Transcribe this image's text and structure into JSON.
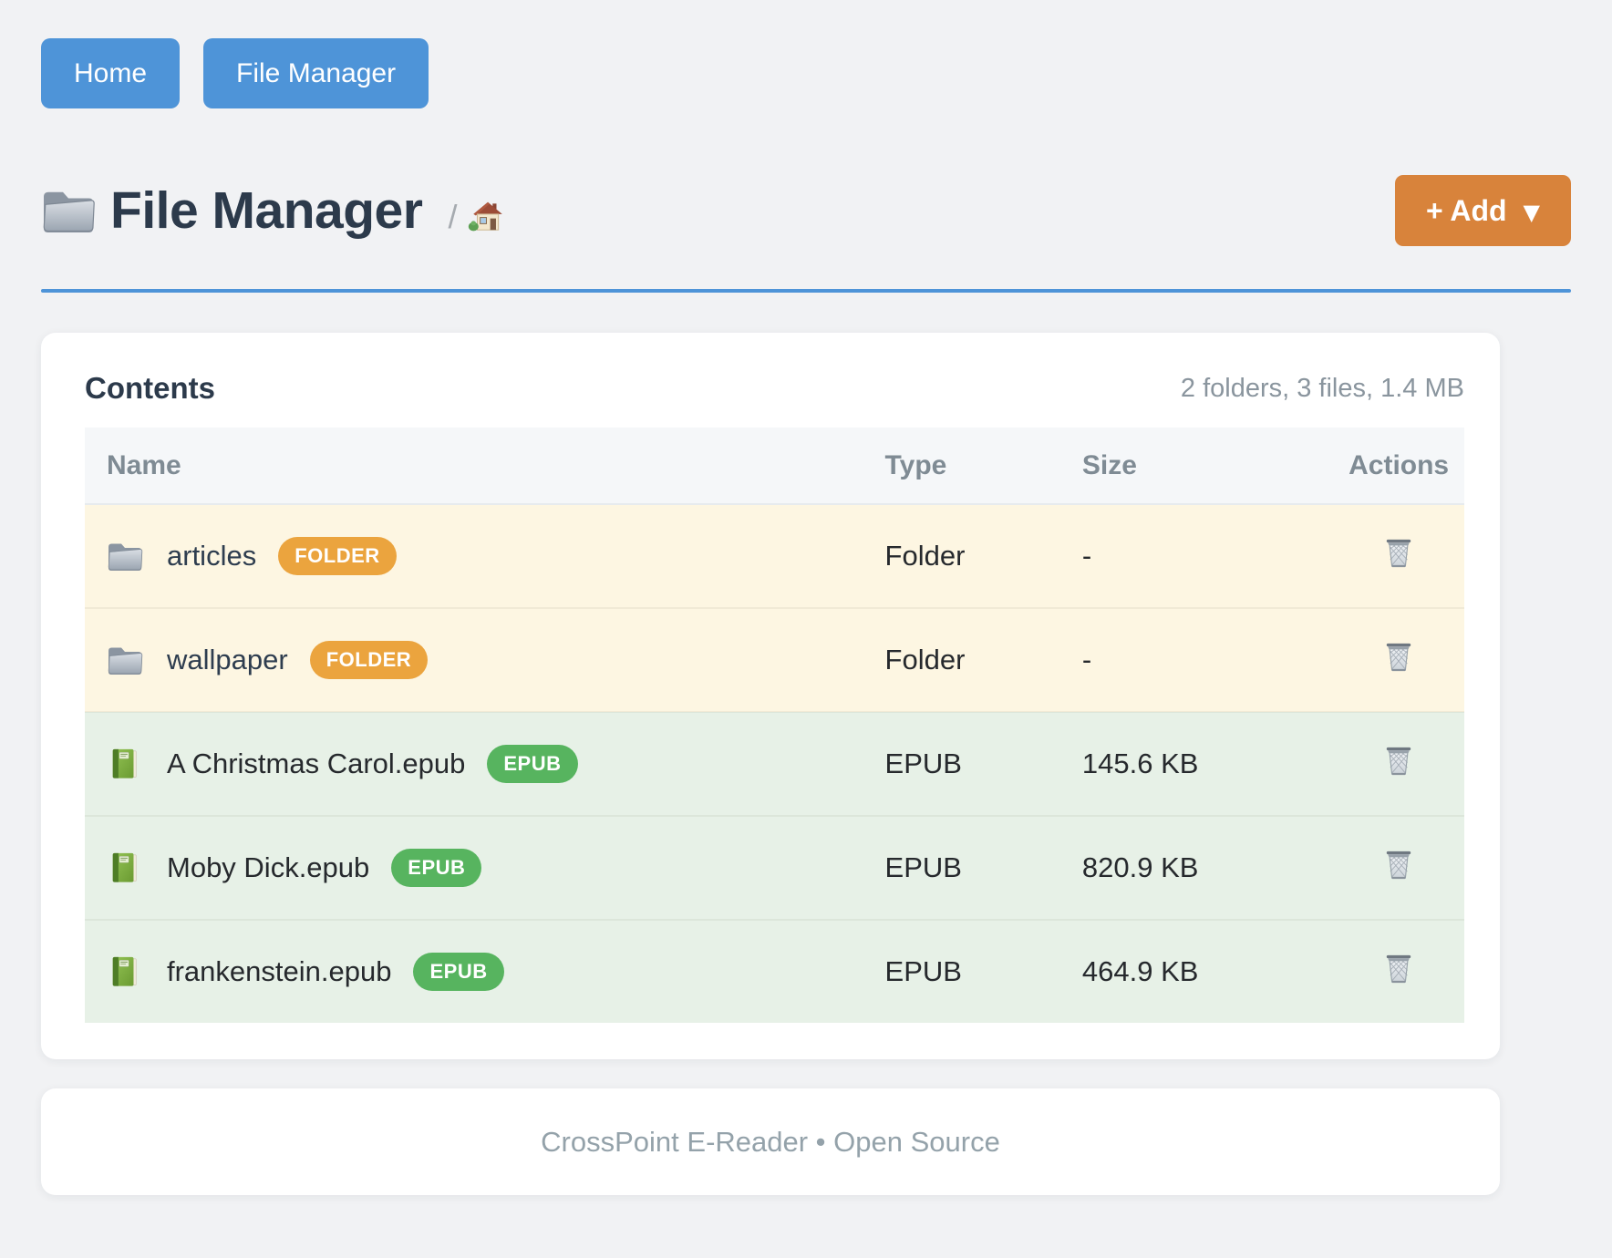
{
  "nav": {
    "home_label": "Home",
    "file_manager_label": "File Manager"
  },
  "header": {
    "title": "File Manager",
    "breadcrumb_separator": "/",
    "add_button_label": "+ Add",
    "add_button_caret": "▼"
  },
  "panel": {
    "title": "Contents",
    "summary": "2 folders, 3 files, 1.4 MB"
  },
  "table": {
    "columns": [
      "Name",
      "Type",
      "Size",
      "Actions"
    ],
    "rows": [
      {
        "name": "articles",
        "badge": "FOLDER",
        "kind": "folder",
        "type": "Folder",
        "size": "-"
      },
      {
        "name": "wallpaper",
        "badge": "FOLDER",
        "kind": "folder",
        "type": "Folder",
        "size": "-"
      },
      {
        "name": "A Christmas Carol.epub",
        "badge": "EPUB",
        "kind": "epub",
        "type": "EPUB",
        "size": "145.6 KB"
      },
      {
        "name": "Moby Dick.epub",
        "badge": "EPUB",
        "kind": "epub",
        "type": "EPUB",
        "size": "820.9 KB"
      },
      {
        "name": "frankenstein.epub",
        "badge": "EPUB",
        "kind": "epub",
        "type": "EPUB",
        "size": "464.9 KB"
      }
    ]
  },
  "footer": {
    "text": "CrossPoint E-Reader • Open Source"
  },
  "icons": {
    "title": "folder-icon",
    "breadcrumb": "house-icon",
    "row_folder": "folder-icon",
    "row_epub": "green-book-icon",
    "delete": "trash-icon",
    "add_caret": "caret-down-icon"
  },
  "colors": {
    "primary_blue": "#4e94d8",
    "accent_orange": "#d8833b",
    "badge_folder": "#eba43e",
    "badge_epub": "#57b45f",
    "row_folder_bg": "#fdf6e2",
    "row_epub_bg": "#e7f1e7",
    "heading_text": "#2c3a4b",
    "muted_text": "#8a959e"
  }
}
